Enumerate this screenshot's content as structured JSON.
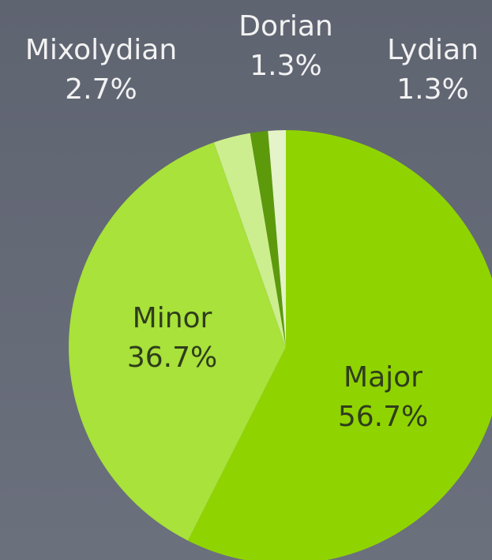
{
  "chart_data": {
    "type": "pie",
    "categories": [
      "Major",
      "Minor",
      "Mixolydian",
      "Dorian",
      "Lydian"
    ],
    "values": [
      56.7,
      36.7,
      2.7,
      1.3,
      1.3
    ],
    "value_labels": [
      "56.7%",
      "36.7%",
      "2.7%",
      "1.3%",
      "1.3%"
    ],
    "colors": [
      "#8fd400",
      "#a8e23a",
      "#cdee8e",
      "#5c9a0c",
      "#e4f3c8"
    ]
  }
}
